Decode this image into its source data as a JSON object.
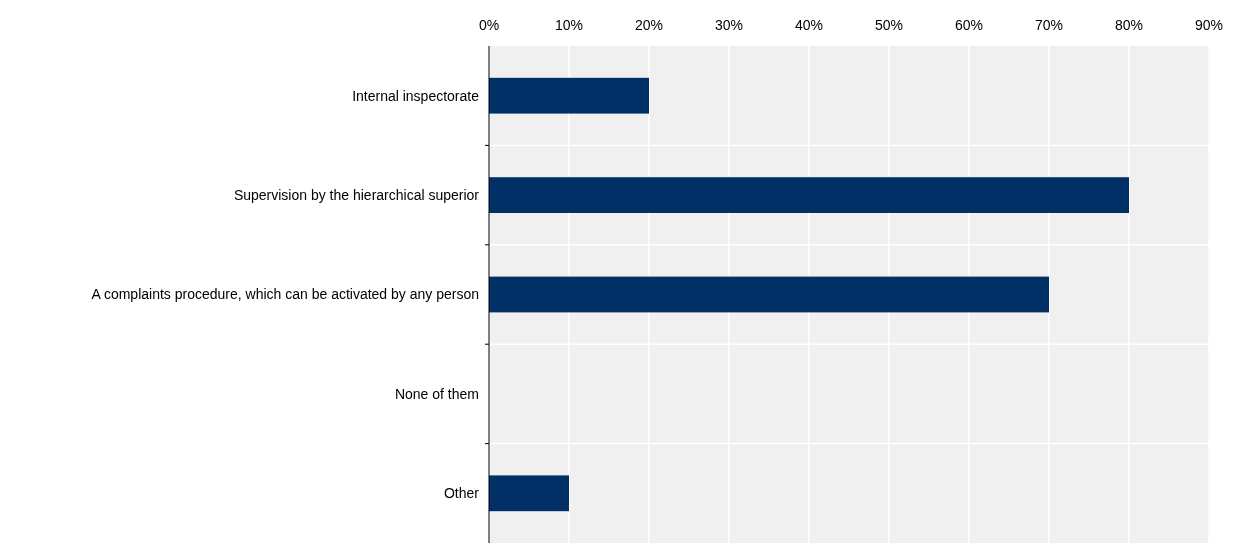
{
  "chart_data": {
    "type": "bar",
    "orientation": "horizontal",
    "categories": [
      "Internal inspectorate",
      "Supervision by the hierarchical superior",
      "A complaints procedure, which can be activated by any person",
      "None of them",
      "Other"
    ],
    "values": [
      20,
      80,
      70,
      0,
      10
    ],
    "color": "#003066",
    "xlim": [
      0,
      90
    ],
    "xticks": [
      {
        "value": 0,
        "label": "0%"
      },
      {
        "value": 10,
        "label": "10%"
      },
      {
        "value": 20,
        "label": "20%"
      },
      {
        "value": 30,
        "label": "30%"
      },
      {
        "value": 40,
        "label": "40%"
      },
      {
        "value": 50,
        "label": "50%"
      },
      {
        "value": 60,
        "label": "60%"
      },
      {
        "value": 70,
        "label": "70%"
      },
      {
        "value": 80,
        "label": "80%"
      },
      {
        "value": 90,
        "label": "90%"
      }
    ],
    "grid": true
  }
}
